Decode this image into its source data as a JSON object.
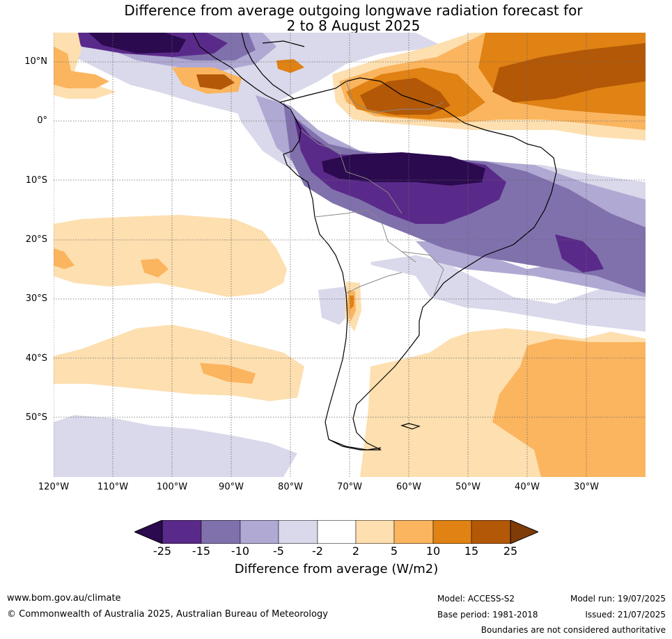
{
  "title_line1": "Difference from average outgoing longwave radiation forecast for",
  "title_line2": "2 to 8 August 2025",
  "lat_labels": [
    "10°N",
    "0°",
    "10°S",
    "20°S",
    "30°S",
    "40°S",
    "50°S"
  ],
  "lon_labels": [
    "120°W",
    "110°W",
    "100°W",
    "90°W",
    "80°W",
    "70°W",
    "60°W",
    "50°W",
    "40°W",
    "30°W"
  ],
  "colorbar": {
    "ticks": [
      "-25",
      "-15",
      "-10",
      "-5",
      "-2",
      "2",
      "5",
      "10",
      "15",
      "25"
    ],
    "colors": [
      "#2b0a4f",
      "#5a2a8a",
      "#8071ad",
      "#b0a9d3",
      "#d9d9eb",
      "#ffffff",
      "#fddfb0",
      "#fbb55f",
      "#e08214",
      "#b35806",
      "#7f3b08"
    ],
    "label": "Difference from average (W/m2)"
  },
  "footer": {
    "website": "www.bom.gov.au/climate",
    "copyright": "© Commonwealth of Australia 2025, Australian Bureau of Meteorology",
    "model": "Model: ACCESS-S2",
    "model_run": "Model run: 19/07/2025",
    "base_period": "Base period: 1981-2018",
    "issued": "Issued: 21/07/2025",
    "boundaries": "Boundaries are not considered authoritative"
  }
}
